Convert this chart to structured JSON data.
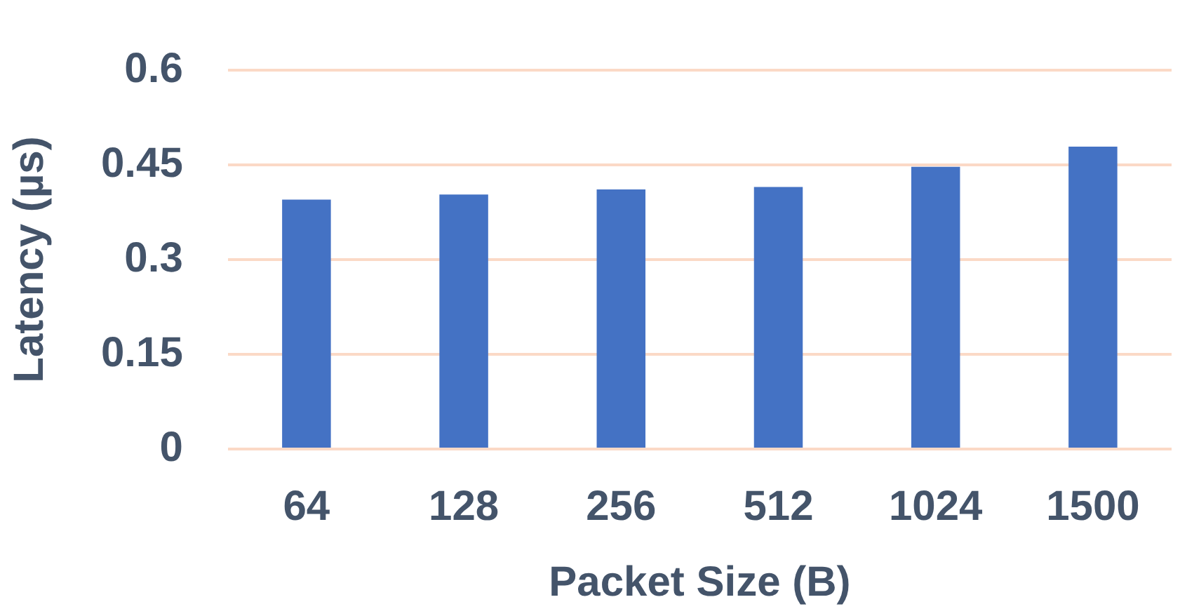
{
  "chart_data": {
    "type": "bar",
    "xlabel": "Packet Size (B)",
    "ylabel": "Latency (µs)",
    "categories": [
      "64",
      "128",
      "256",
      "512",
      "1024",
      "1500"
    ],
    "values": [
      0.395,
      0.403,
      0.411,
      0.415,
      0.447,
      0.479
    ],
    "color": "#4472c4",
    "ylim": [
      0,
      0.6
    ],
    "yticks": [
      0,
      0.15,
      0.3,
      0.45,
      0.6
    ],
    "grid": "y",
    "legend": false
  }
}
